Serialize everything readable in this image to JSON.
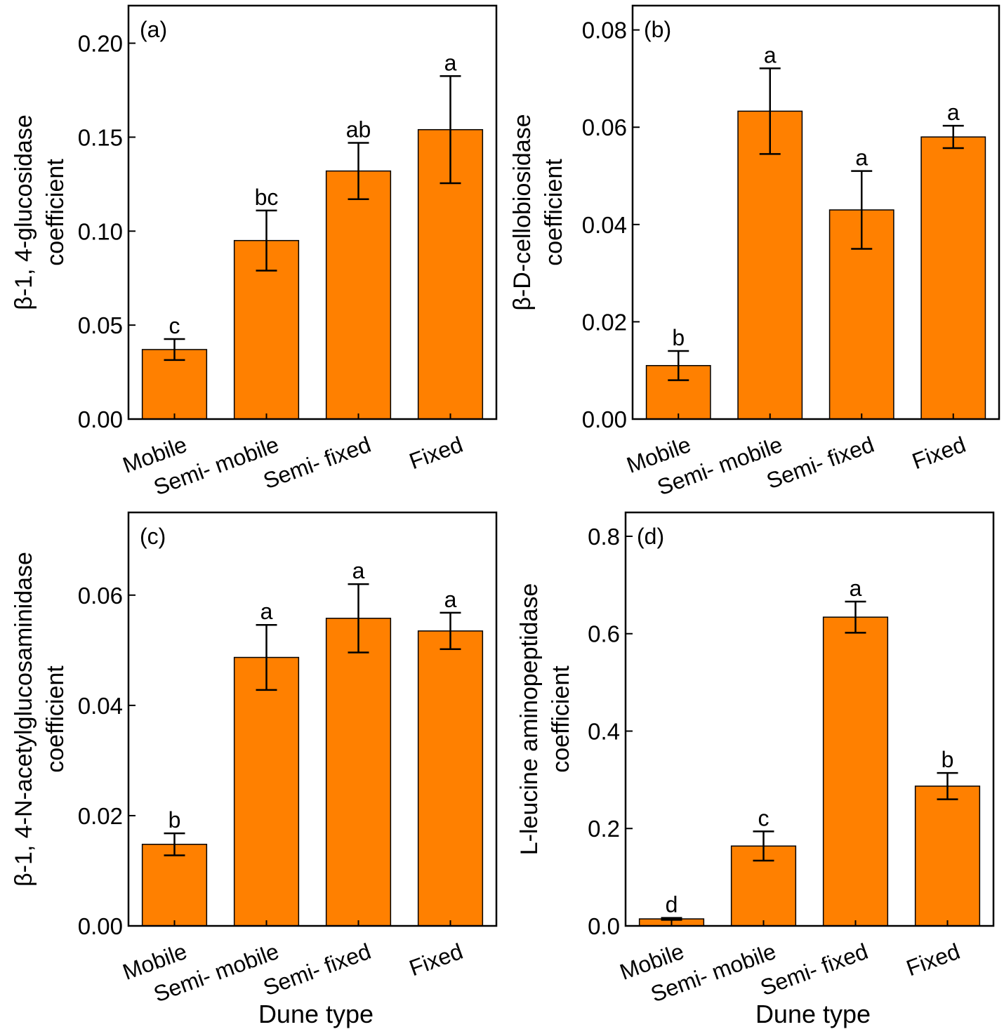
{
  "chart_data": [
    {
      "type": "bar",
      "panel_label": "(a)",
      "categories": [
        "Mobile",
        "Semi- mobile",
        "Semi- fixed",
        "Fixed"
      ],
      "values": [
        0.037,
        0.095,
        0.132,
        0.154
      ],
      "errors": [
        0.0056,
        0.016,
        0.015,
        0.0285
      ],
      "significance": [
        "c",
        "bc",
        "ab",
        "a"
      ],
      "ylabel": [
        "β-1, 4-glucosidase",
        "coefficient"
      ],
      "xlabel": "",
      "ylim": [
        0,
        0.22
      ],
      "yticks": [
        0.0,
        0.05,
        0.1,
        0.15,
        0.2
      ],
      "ytick_labels": [
        "0.00",
        "0.05",
        "0.10",
        "0.15",
        "0.20"
      ],
      "bar_color": "#FF8000"
    },
    {
      "type": "bar",
      "panel_label": "(b)",
      "categories": [
        "Mobile",
        "Semi- mobile",
        "Semi- fixed",
        "Fixed"
      ],
      "values": [
        0.011,
        0.0633,
        0.043,
        0.058
      ],
      "errors": [
        0.003,
        0.0088,
        0.008,
        0.0023
      ],
      "significance": [
        "b",
        "a",
        "a",
        "a"
      ],
      "ylabel": [
        "β-D-cellobiosidase",
        "coefficient"
      ],
      "xlabel": "",
      "ylim": [
        0,
        0.085
      ],
      "yticks": [
        0.0,
        0.02,
        0.04,
        0.06,
        0.08
      ],
      "ytick_labels": [
        "0.00",
        "0.02",
        "0.04",
        "0.06",
        "0.08"
      ],
      "bar_color": "#FF8000"
    },
    {
      "type": "bar",
      "panel_label": "(c)",
      "categories": [
        "Mobile",
        "Semi- mobile",
        "Semi- fixed",
        "Fixed"
      ],
      "values": [
        0.0148,
        0.0487,
        0.0558,
        0.0535
      ],
      "errors": [
        0.002,
        0.0059,
        0.0062,
        0.0033
      ],
      "significance": [
        "b",
        "a",
        "a",
        "a"
      ],
      "ylabel": [
        "β-1, 4-N-acetylglucosaminidase",
        "coefficient"
      ],
      "xlabel": "Dune type",
      "ylim": [
        0,
        0.075
      ],
      "yticks": [
        0.0,
        0.02,
        0.04,
        0.06
      ],
      "ytick_labels": [
        "0.00",
        "0.02",
        "0.04",
        "0.06"
      ],
      "bar_color": "#FF8000"
    },
    {
      "type": "bar",
      "panel_label": "(d)",
      "categories": [
        "Mobile",
        "Semi- mobile",
        "Semi- fixed",
        "Fixed"
      ],
      "values": [
        0.0144,
        0.164,
        0.634,
        0.287
      ],
      "errors": [
        0.002,
        0.03,
        0.032,
        0.027
      ],
      "significance": [
        "d",
        "c",
        "a",
        "b"
      ],
      "ylabel": [
        "L-leucine aminopeptidase",
        "coefficient"
      ],
      "xlabel": "Dune type",
      "ylim": [
        0,
        0.849
      ],
      "yticks": [
        0.0,
        0.2,
        0.4,
        0.6,
        0.8
      ],
      "ytick_labels": [
        "0.0",
        "0.2",
        "0.4",
        "0.6",
        "0.8"
      ],
      "bar_color": "#FF8000"
    }
  ]
}
